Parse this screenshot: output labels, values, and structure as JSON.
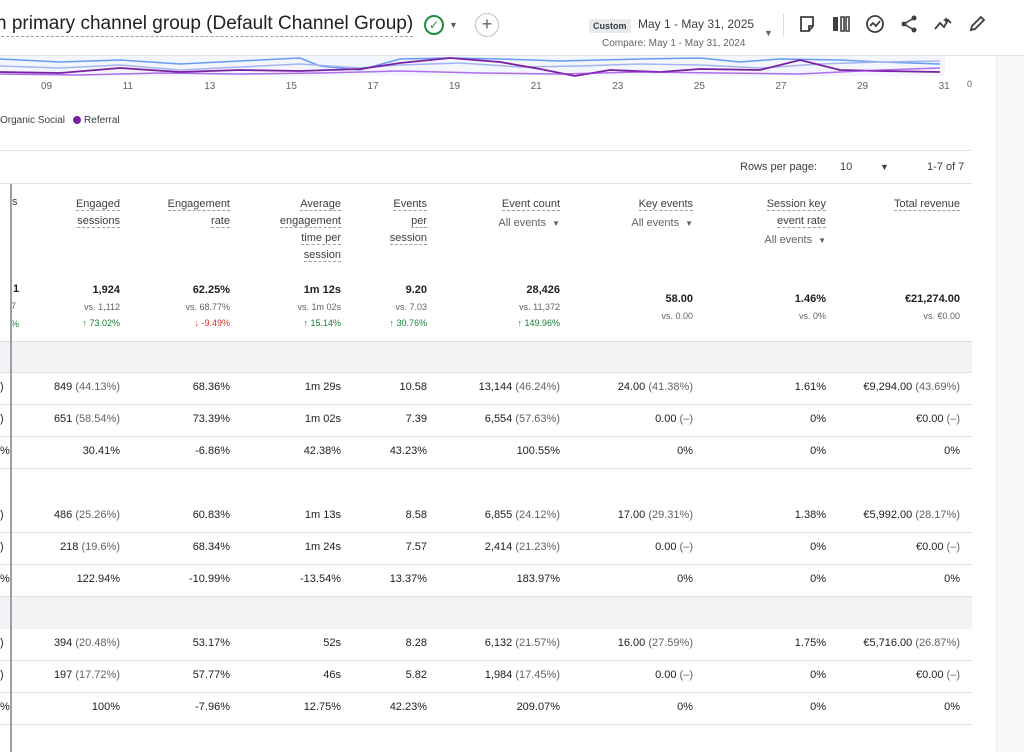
{
  "header": {
    "title": "n primary channel group (Default Channel Group)",
    "custom_label": "Custom",
    "date_range": "May 1 - May 31, 2025",
    "compare_range": "Compare: May 1 - May 31, 2024"
  },
  "chart": {
    "x_ticks": [
      "09",
      "11",
      "13",
      "15",
      "17",
      "19",
      "21",
      "23",
      "25",
      "27",
      "29",
      "31"
    ],
    "y_zero": "0",
    "legend": [
      {
        "label": "Organic Social",
        "color": "#7b1fa2",
        "marker": false
      },
      {
        "label": "Referral",
        "color": "#7b1fa2",
        "marker": true
      }
    ]
  },
  "pagination": {
    "rows_per_page_label": "Rows per page:",
    "rows_per_page_value": "10",
    "range": "1-7 of 7"
  },
  "columns": [
    {
      "title_lines": [
        "Engaged",
        "sessions"
      ],
      "sub": ""
    },
    {
      "title_lines": [
        "Engagement",
        "rate"
      ],
      "sub": ""
    },
    {
      "title_lines": [
        "Average",
        "engagement",
        "time per",
        "session"
      ],
      "sub": ""
    },
    {
      "title_lines": [
        "Events",
        "per",
        "session"
      ],
      "sub": ""
    },
    {
      "title_lines": [
        "Event count"
      ],
      "sub": "All events"
    },
    {
      "title_lines": [
        "Key events"
      ],
      "sub": "All events"
    },
    {
      "title_lines": [
        "Session key",
        "event rate"
      ],
      "sub": "All events"
    },
    {
      "title_lines": [
        "Total revenue"
      ],
      "sub": ""
    }
  ],
  "partial_header": "s",
  "totals": {
    "lead_lines": [
      "1",
      "7",
      "%"
    ],
    "cells": [
      {
        "value": "1,924",
        "compare": "vs. 1,112",
        "change": "↑ 73.02%",
        "dir": "up"
      },
      {
        "value": "62.25%",
        "compare": "vs. 68.77%",
        "change": "↓ -9.49%",
        "dir": "down"
      },
      {
        "value": "1m 12s",
        "compare": "vs. 1m 02s",
        "change": "↑ 15.14%",
        "dir": "up"
      },
      {
        "value": "9.20",
        "compare": "vs. 7.03",
        "change": "↑ 30.76%",
        "dir": "up"
      },
      {
        "value": "28,426",
        "compare": "vs. 11,372",
        "change": "↑ 149.96%",
        "dir": "up"
      },
      {
        "value": "58.00",
        "compare": "vs. 0.00",
        "change": "",
        "dir": ""
      },
      {
        "value": "1.46%",
        "compare": "vs. 0%",
        "change": "",
        "dir": ""
      },
      {
        "value": "€21,274.00",
        "compare": "vs. €0.00",
        "change": "",
        "dir": ""
      }
    ]
  },
  "groups": [
    {
      "rows": [
        {
          "lead": ")",
          "cells": [
            [
              "849",
              " (44.13%)"
            ],
            [
              "68.36%",
              ""
            ],
            [
              "1m 29s",
              ""
            ],
            [
              "10.58",
              ""
            ],
            [
              "13,144",
              " (46.24%)"
            ],
            [
              "24.00",
              " (41.38%)"
            ],
            [
              "1.61%",
              ""
            ],
            [
              "€9,294.00",
              " (43.69%)"
            ]
          ]
        },
        {
          "lead": ")",
          "cells": [
            [
              "651",
              " (58.54%)"
            ],
            [
              "73.39%",
              ""
            ],
            [
              "1m 02s",
              ""
            ],
            [
              "7.39",
              ""
            ],
            [
              "6,554",
              " (57.63%)"
            ],
            [
              "0.00",
              " (–)"
            ],
            [
              "0%",
              ""
            ],
            [
              "€0.00",
              " (–)"
            ]
          ]
        },
        {
          "lead": "%",
          "cells": [
            [
              "30.41%",
              ""
            ],
            [
              "-6.86%",
              ""
            ],
            [
              "42.38%",
              ""
            ],
            [
              "43.23%",
              ""
            ],
            [
              "100.55%",
              ""
            ],
            [
              "0%",
              ""
            ],
            [
              "0%",
              ""
            ],
            [
              "0%",
              ""
            ]
          ]
        }
      ]
    },
    {
      "rows": [
        {
          "lead": ")",
          "cells": [
            [
              "486",
              " (25.26%)"
            ],
            [
              "60.83%",
              ""
            ],
            [
              "1m 13s",
              ""
            ],
            [
              "8.58",
              ""
            ],
            [
              "6,855",
              " (24.12%)"
            ],
            [
              "17.00",
              " (29.31%)"
            ],
            [
              "1.38%",
              ""
            ],
            [
              "€5,992.00",
              " (28.17%)"
            ]
          ]
        },
        {
          "lead": ")",
          "cells": [
            [
              "218",
              " (19.6%)"
            ],
            [
              "68.34%",
              ""
            ],
            [
              "1m 24s",
              ""
            ],
            [
              "7.57",
              ""
            ],
            [
              "2,414",
              " (21.23%)"
            ],
            [
              "0.00",
              " (–)"
            ],
            [
              "0%",
              ""
            ],
            [
              "€0.00",
              " (–)"
            ]
          ]
        },
        {
          "lead": "%",
          "cells": [
            [
              "122.94%",
              ""
            ],
            [
              "-10.99%",
              ""
            ],
            [
              "-13.54%",
              ""
            ],
            [
              "13.37%",
              ""
            ],
            [
              "183.97%",
              ""
            ],
            [
              "0%",
              ""
            ],
            [
              "0%",
              ""
            ],
            [
              "0%",
              ""
            ]
          ]
        }
      ]
    },
    {
      "rows": [
        {
          "lead": ")",
          "cells": [
            [
              "394",
              " (20.48%)"
            ],
            [
              "53.17%",
              ""
            ],
            [
              "52s",
              ""
            ],
            [
              "8.28",
              ""
            ],
            [
              "6,132",
              " (21.57%)"
            ],
            [
              "16.00",
              " (27.59%)"
            ],
            [
              "1.75%",
              ""
            ],
            [
              "€5,716.00",
              " (26.87%)"
            ]
          ]
        },
        {
          "lead": ")",
          "cells": [
            [
              "197",
              " (17.72%)"
            ],
            [
              "57.77%",
              ""
            ],
            [
              "46s",
              ""
            ],
            [
              "5.82",
              ""
            ],
            [
              "1,984",
              " (17.45%)"
            ],
            [
              "0.00",
              " (–)"
            ],
            [
              "0%",
              ""
            ],
            [
              "€0.00",
              " (–)"
            ]
          ]
        },
        {
          "lead": "%",
          "cells": [
            [
              "100%",
              ""
            ],
            [
              "-7.96%",
              ""
            ],
            [
              "12.75%",
              ""
            ],
            [
              "42.23%",
              ""
            ],
            [
              "209.07%",
              ""
            ],
            [
              "0%",
              ""
            ],
            [
              "0%",
              ""
            ],
            [
              "0%",
              ""
            ]
          ]
        }
      ]
    }
  ],
  "toolbar_icons": [
    "note-icon",
    "compare-icon",
    "insights-icon",
    "share-icon",
    "trend-icon",
    "edit-icon"
  ]
}
